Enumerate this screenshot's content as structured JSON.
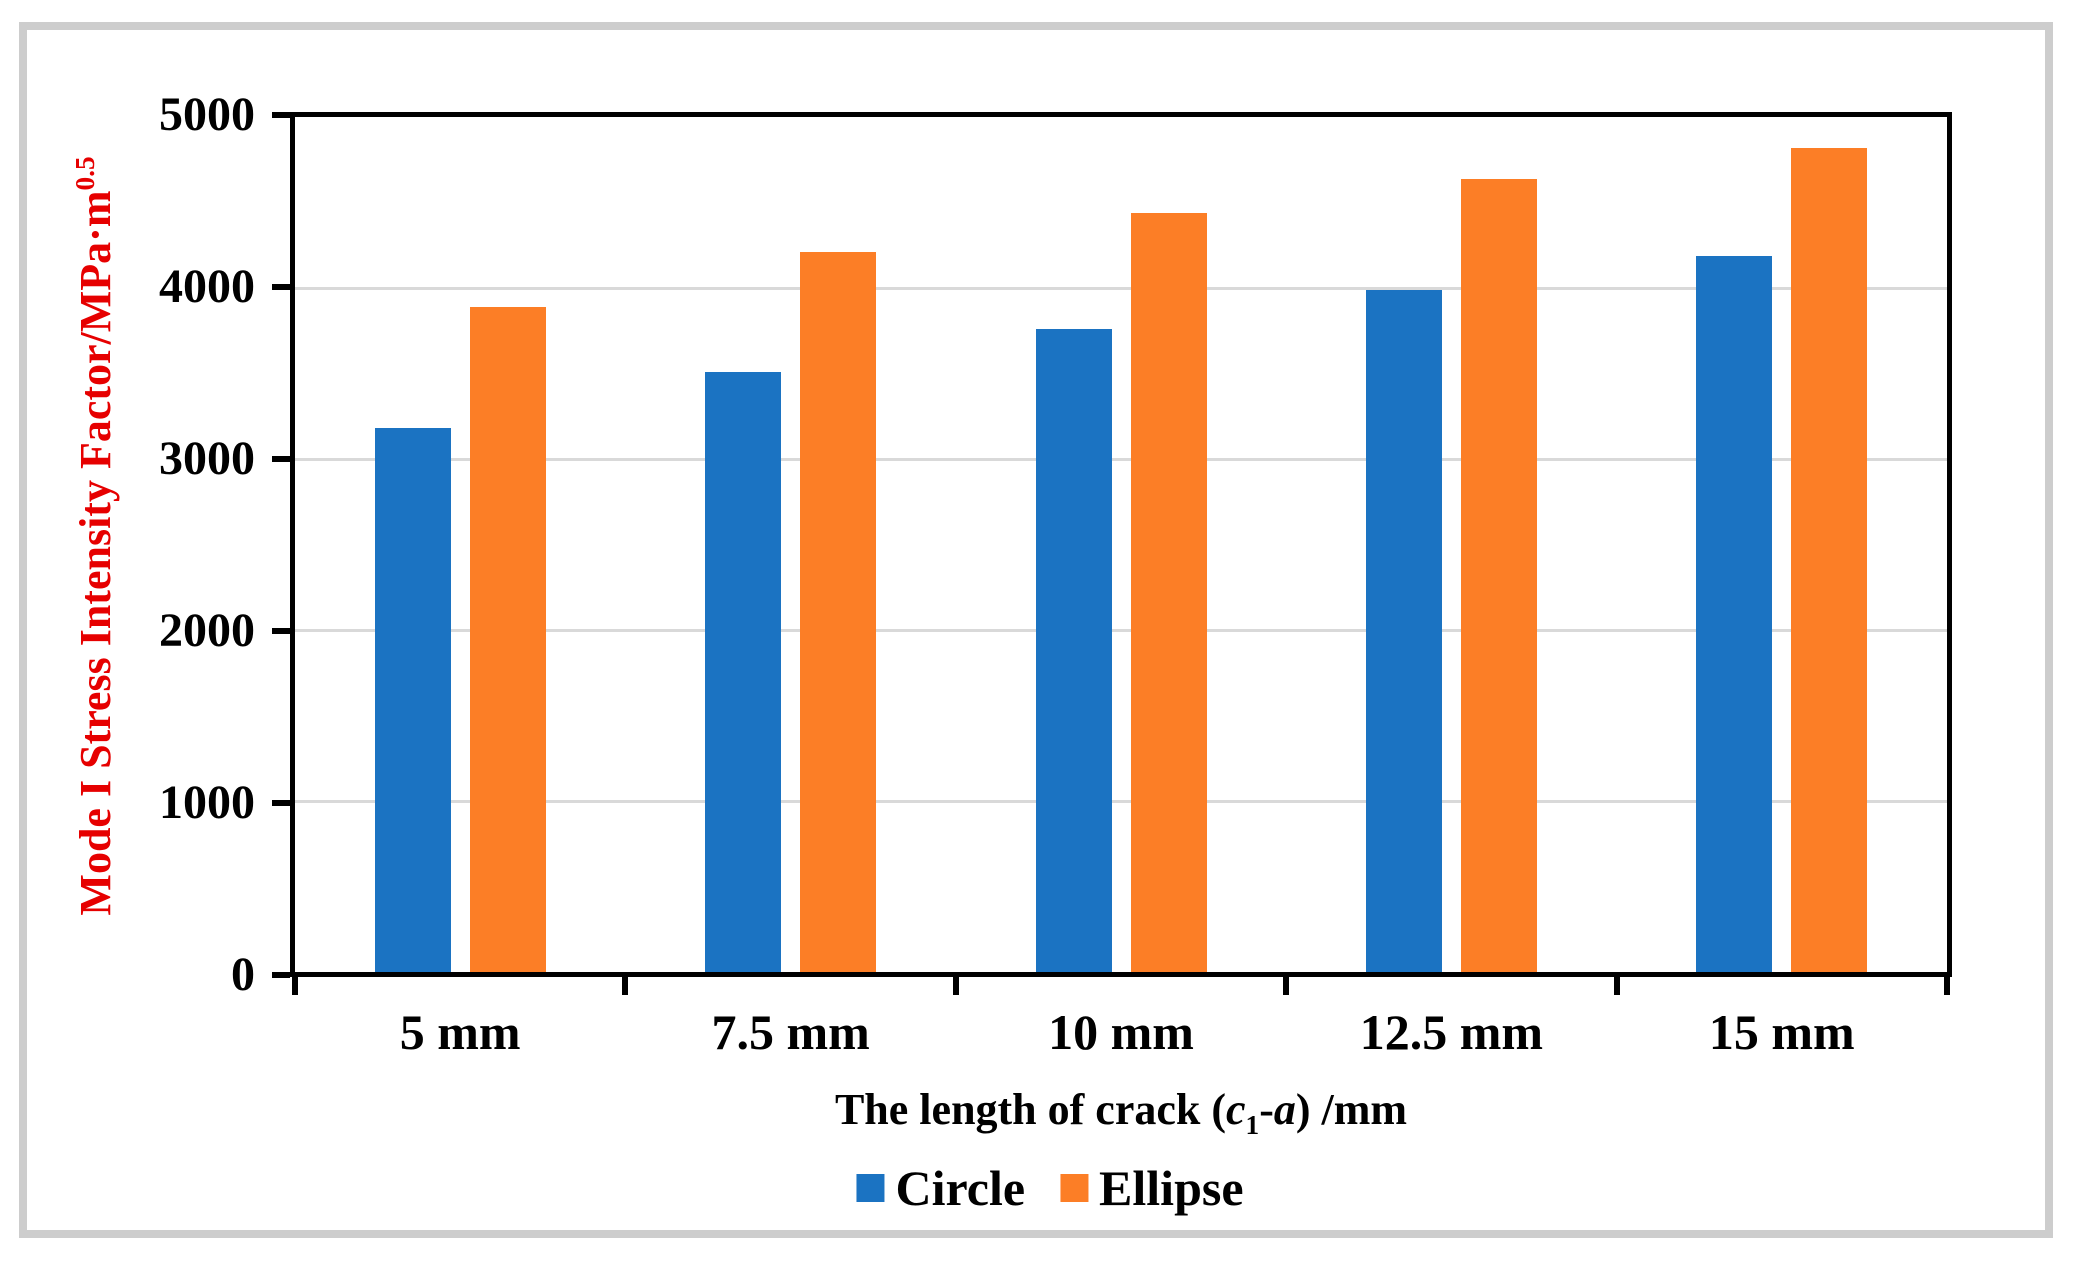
{
  "chart_data": {
    "type": "bar",
    "categories": [
      "5 mm",
      "7.5 mm",
      "10 mm",
      "12.5 mm",
      "15 mm"
    ],
    "series": [
      {
        "name": "Circle",
        "color": "#1b73c2",
        "values": [
          3180,
          3510,
          3760,
          3990,
          4190
        ]
      },
      {
        "name": "Ellipse",
        "color": "#fc7e26",
        "values": [
          3890,
          4210,
          4440,
          4640,
          4820
        ]
      }
    ],
    "xlabel": "The length of crack (c1-a) /mm",
    "xlabel_tokens": [
      {
        "text": "The length of crack (",
        "style": "normal"
      },
      {
        "text": "c",
        "style": "italic"
      },
      {
        "text": "1",
        "style": "subscript"
      },
      {
        "text": "-",
        "style": "normal"
      },
      {
        "text": "a",
        "style": "italic"
      },
      {
        "text": ") /mm",
        "style": "normal"
      }
    ],
    "ylabel": "Mode I Stress Intensity Factor/MPa·m0.5",
    "ylabel_tokens": [
      {
        "text": "Mode I Stress Intensity Factor/MPa·m",
        "style": "normal"
      },
      {
        "text": "0.5",
        "style": "superscript"
      }
    ],
    "ylabel_color": "#e60000",
    "ylim": [
      0,
      5000
    ],
    "yticks": [
      0,
      1000,
      2000,
      3000,
      4000,
      5000
    ],
    "grid": "horizontal-major",
    "gridline_color": "#d9d9d9",
    "axis_color": "#000000",
    "frame_color": "#cdcdcd",
    "legend_position": "bottom-center",
    "legend_labels": [
      "Circle",
      "Ellipse"
    ]
  }
}
